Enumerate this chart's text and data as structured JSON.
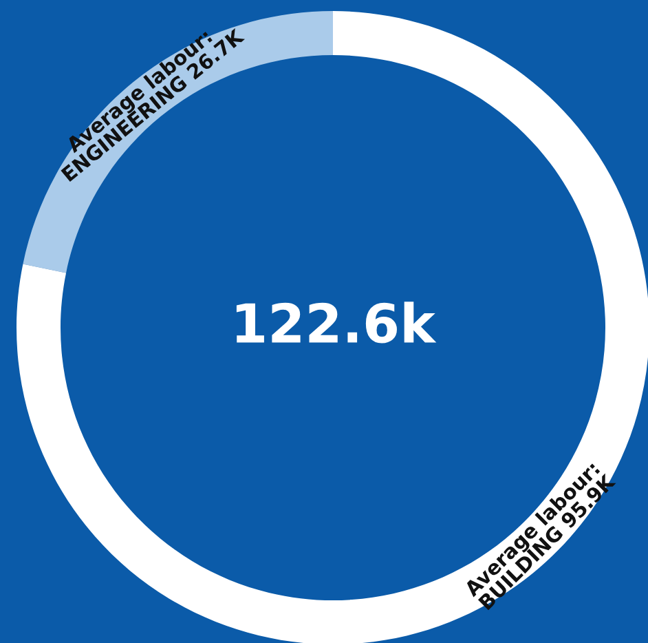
{
  "chart_data": {
    "type": "donut",
    "categories": [
      "Average labour:\nENGINEERING",
      "Average labour:\nBUILDING"
    ],
    "values": [
      26.7,
      95.9
    ],
    "value_labels": [
      "26.7K",
      "95.9K"
    ],
    "colors": [
      "#aacbea",
      "#ffffff"
    ],
    "annotations": [
      "122.6k"
    ]
  }
}
